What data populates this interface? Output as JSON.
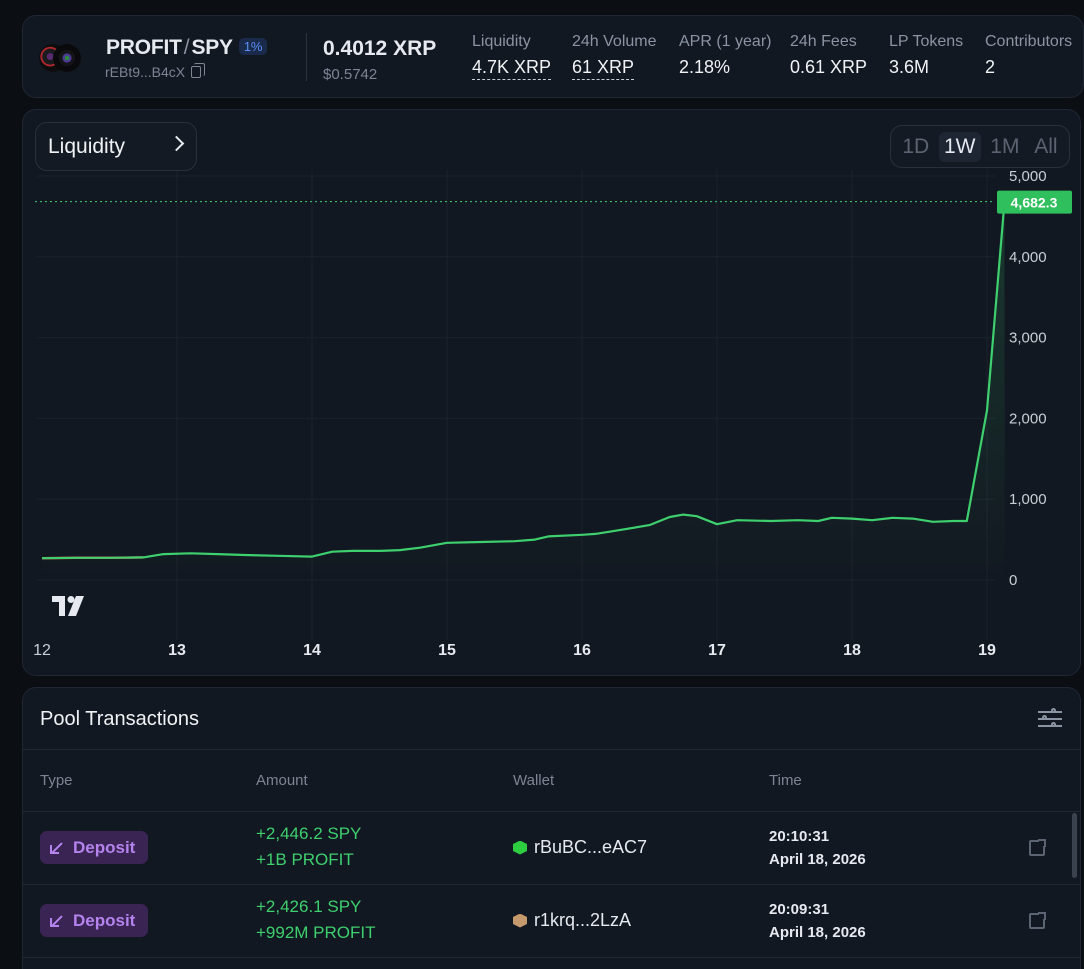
{
  "pool": {
    "base": "PROFIT",
    "quote": "SPY",
    "fee": "1%",
    "address": "rEBt9...B4cX",
    "price": "0.4012 XRP",
    "price_usd": "$0.5742"
  },
  "stats": [
    {
      "label": "Liquidity",
      "value": "4.7K XRP"
    },
    {
      "label": "24h Volume",
      "value": "61 XRP"
    },
    {
      "label": "APR (1 year)",
      "value": "2.18%"
    },
    {
      "label": "24h Fees",
      "value": "0.61 XRP"
    },
    {
      "label": "LP Tokens",
      "value": "3.6M"
    },
    {
      "label": "Contributors",
      "value": "2"
    }
  ],
  "chart_header": {
    "metric": "Liquidity",
    "ranges": [
      "1D",
      "1W",
      "1M",
      "All"
    ],
    "active_range": "1W"
  },
  "chart_data": {
    "type": "line",
    "title": "Liquidity",
    "x_ticks": [
      "12",
      "13",
      "14",
      "15",
      "16",
      "17",
      "18",
      "19"
    ],
    "y_ticks": [
      "0",
      "1,000",
      "2,000",
      "3,000",
      "4,000",
      "5,000"
    ],
    "ylim": [
      0,
      5000
    ],
    "xlim": [
      12,
      19.13
    ],
    "last_value_label": "4,682.3",
    "series": [
      {
        "name": "Liquidity",
        "color": "#3ecf6e",
        "x": [
          12.0,
          12.25,
          12.5,
          12.75,
          12.9,
          13.1,
          13.3,
          13.5,
          13.75,
          14.0,
          14.15,
          14.3,
          14.5,
          14.65,
          14.8,
          15.0,
          15.25,
          15.5,
          15.65,
          15.75,
          16.0,
          16.1,
          16.25,
          16.5,
          16.65,
          16.75,
          16.85,
          17.0,
          17.15,
          17.4,
          17.6,
          17.75,
          17.85,
          18.0,
          18.15,
          18.3,
          18.45,
          18.6,
          18.75,
          18.85,
          19.0,
          19.13
        ],
        "y": [
          270,
          275,
          275,
          280,
          320,
          330,
          320,
          310,
          300,
          290,
          350,
          360,
          360,
          370,
          400,
          460,
          470,
          480,
          500,
          540,
          560,
          570,
          610,
          680,
          780,
          810,
          790,
          690,
          740,
          730,
          740,
          730,
          770,
          760,
          740,
          770,
          760,
          720,
          730,
          730,
          2100,
          4682.3
        ]
      }
    ],
    "grid": true
  },
  "transactions": {
    "title": "Pool Transactions",
    "columns": [
      "Type",
      "Amount",
      "Wallet",
      "Time"
    ],
    "rows": [
      {
        "type": "Deposit",
        "amount1": "+2,446.2 SPY",
        "amount2": "+1B PROFIT",
        "wallet": "rBuBC...eAC7",
        "wallet_color": "#2ecc40",
        "time": "20:10:31",
        "date": "April 18, 2026"
      },
      {
        "type": "Deposit",
        "amount1": "+2,426.1 SPY",
        "amount2": "+992M PROFIT",
        "wallet": "r1krq...2LzA",
        "wallet_color": "#c49a6c",
        "time": "20:09:31",
        "date": "April 18, 2026"
      }
    ]
  }
}
